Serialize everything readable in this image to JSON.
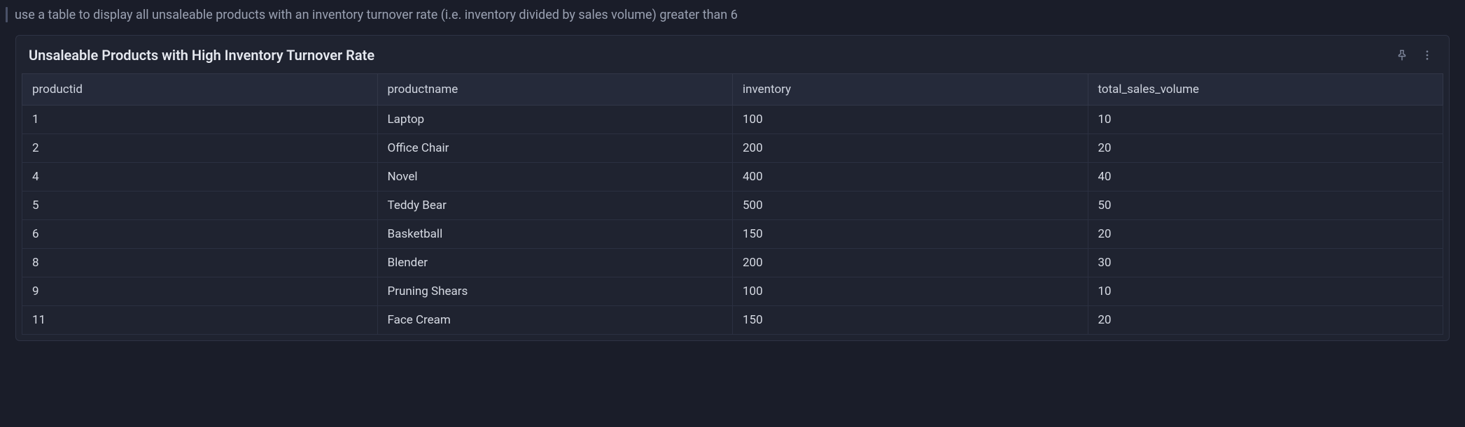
{
  "prompt": {
    "text": "use a table to display all unsaleable products with an inventory turnover rate (i.e. inventory divided by sales volume) greater than 6"
  },
  "card": {
    "title": "Unsaleable Products with High Inventory Turnover Rate"
  },
  "table": {
    "type": "table",
    "columns": [
      "productid",
      "productname",
      "inventory",
      "total_sales_volume"
    ],
    "rows": [
      [
        "1",
        "Laptop",
        "100",
        "10"
      ],
      [
        "2",
        "Office Chair",
        "200",
        "20"
      ],
      [
        "4",
        "Novel",
        "400",
        "40"
      ],
      [
        "5",
        "Teddy Bear",
        "500",
        "50"
      ],
      [
        "6",
        "Basketball",
        "150",
        "20"
      ],
      [
        "8",
        "Blender",
        "200",
        "30"
      ],
      [
        "9",
        "Pruning Shears",
        "100",
        "10"
      ],
      [
        "11",
        "Face Cream",
        "150",
        "20"
      ]
    ],
    "header_bg": "#252a3a",
    "row_bg": "#1f2330",
    "border_color": "#2b3041",
    "text_color": "#d6dae3",
    "header_text_color": "#cfd4df",
    "fontsize": 17
  },
  "colors": {
    "page_bg": "#1a1d29",
    "card_bg": "#1f2330",
    "card_border": "#2e3344",
    "icon": "#7c8499",
    "title": "#e5e8ef",
    "prompt": "#9aa1b2"
  }
}
